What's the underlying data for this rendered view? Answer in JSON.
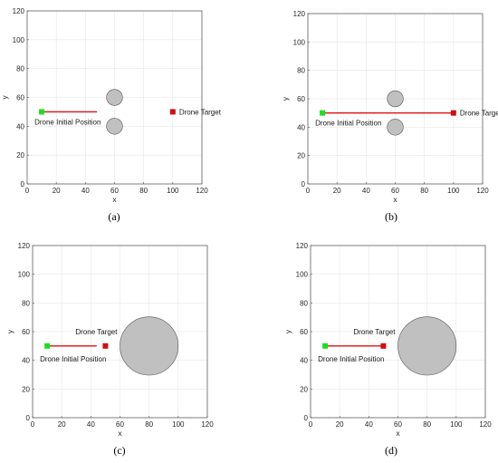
{
  "chart_data": [
    {
      "type": "scatter",
      "panel": "(a)",
      "xlabel": "x",
      "ylabel": "y",
      "xlim": [
        0,
        120
      ],
      "ylim": [
        0,
        120
      ],
      "xticks": [
        0,
        20,
        40,
        60,
        80,
        100,
        120
      ],
      "yticks": [
        0,
        20,
        40,
        60,
        80,
        100,
        120
      ],
      "grid": true,
      "start": {
        "x": 10,
        "y": 50,
        "label": "Drone Initial Position",
        "color": "#22dd22"
      },
      "target": {
        "x": 100,
        "y": 50,
        "label": "Drone Target",
        "color": "#cc1111"
      },
      "path": {
        "x": [
          10,
          48
        ],
        "y": [
          50,
          50
        ],
        "color": "#dd1111"
      },
      "obstacles": [
        {
          "x": 60,
          "y": 60,
          "r": 5.5
        },
        {
          "x": 60,
          "y": 40,
          "r": 5.5
        }
      ]
    },
    {
      "type": "scatter",
      "panel": "(b)",
      "xlabel": "x",
      "ylabel": "y",
      "xlim": [
        0,
        120
      ],
      "ylim": [
        0,
        120
      ],
      "xticks": [
        0,
        20,
        40,
        60,
        80,
        100,
        120
      ],
      "yticks": [
        0,
        20,
        40,
        60,
        80,
        100,
        120
      ],
      "grid": true,
      "start": {
        "x": 10,
        "y": 50,
        "label": "Drone Initial Position",
        "color": "#22dd22"
      },
      "target": {
        "x": 100,
        "y": 50,
        "label": "Drone Target",
        "color": "#cc1111"
      },
      "path": {
        "x": [
          10,
          100
        ],
        "y": [
          50,
          50
        ],
        "color": "#dd1111"
      },
      "obstacles": [
        {
          "x": 60,
          "y": 60,
          "r": 5.5
        },
        {
          "x": 60,
          "y": 40,
          "r": 5.5
        }
      ]
    },
    {
      "type": "scatter",
      "panel": "(c)",
      "xlabel": "x",
      "ylabel": "y",
      "xlim": [
        0,
        120
      ],
      "ylim": [
        0,
        120
      ],
      "xticks": [
        0,
        20,
        40,
        60,
        80,
        100,
        120
      ],
      "yticks": [
        0,
        20,
        40,
        60,
        80,
        100,
        120
      ],
      "grid": true,
      "start": {
        "x": 10,
        "y": 50,
        "label": "Drone Initial Position",
        "color": "#22dd22"
      },
      "target": {
        "x": 50,
        "y": 50,
        "label": "Drone Target",
        "color": "#cc1111"
      },
      "path": {
        "x": [
          10,
          44
        ],
        "y": [
          50,
          50
        ],
        "color": "#dd1111"
      },
      "obstacles": [
        {
          "x": 80,
          "y": 50,
          "r": 20
        }
      ]
    },
    {
      "type": "scatter",
      "panel": "(d)",
      "xlabel": "x",
      "ylabel": "y",
      "xlim": [
        0,
        120
      ],
      "ylim": [
        0,
        120
      ],
      "xticks": [
        0,
        20,
        40,
        60,
        80,
        100,
        120
      ],
      "yticks": [
        0,
        20,
        40,
        60,
        80,
        100,
        120
      ],
      "grid": true,
      "start": {
        "x": 10,
        "y": 50,
        "label": "Drone Initial Position",
        "color": "#22dd22"
      },
      "target": {
        "x": 50,
        "y": 50,
        "label": "Drone Target",
        "color": "#cc1111"
      },
      "path": {
        "x": [
          10,
          50
        ],
        "y": [
          50,
          50
        ],
        "color": "#dd1111"
      },
      "obstacles": [
        {
          "x": 80,
          "y": 50,
          "r": 20
        }
      ]
    }
  ],
  "colors": {
    "obstacle_fill": "#c0c0c0",
    "obstacle_stroke": "#555555",
    "axis": "#4d4d4d",
    "grid": "#e6e6e6"
  }
}
